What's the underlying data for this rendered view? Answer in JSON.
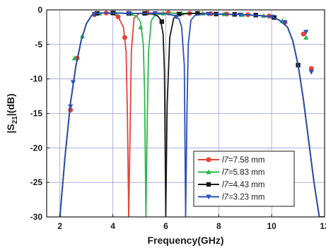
{
  "chart_data": {
    "type": "line",
    "xlabel": "Frequency(GHz)",
    "ylabel_parts": [
      "|S",
      "21",
      "|(dB)"
    ],
    "xlim": [
      1.5,
      12
    ],
    "ylim": [
      -30,
      0
    ],
    "xticks": [
      2,
      4,
      6,
      8,
      10,
      12
    ],
    "xtick_labels": [
      "2",
      "4",
      "6",
      "8",
      "10",
      "12"
    ],
    "yticks": [
      0,
      -5,
      -10,
      -15,
      -20,
      -25,
      -30
    ],
    "ytick_labels": [
      "0",
      "-5",
      "-10",
      "-15",
      "-20",
      "-25",
      "-30"
    ],
    "grid": true,
    "legend_position": "bottom-right",
    "series": [
      {
        "name": "l7=7.58 mm",
        "legend_prefix": "l7",
        "legend_suffix": "=7.58 mm",
        "color": "#e8413a",
        "marker": "circle",
        "x": [
          2.0,
          2.2,
          2.4,
          2.6,
          2.8,
          3.0,
          3.2,
          3.4,
          3.6,
          3.8,
          4.0,
          4.2,
          4.4,
          4.5,
          4.55,
          4.6,
          4.65,
          4.7,
          4.8,
          5.0,
          5.5,
          6.0,
          6.5,
          7.0,
          7.5,
          8.0,
          8.5,
          9.0,
          9.5,
          10.0,
          10.3,
          10.6,
          10.8,
          11.0,
          11.2,
          11.4,
          11.6,
          11.8,
          12.0
        ],
        "y": [
          -30.0,
          -21.0,
          -13.5,
          -8.2,
          -4.5,
          -2.0,
          -0.8,
          -0.5,
          -0.45,
          -0.45,
          -0.6,
          -1.0,
          -2.5,
          -6.0,
          -15.0,
          -30.0,
          -18.0,
          -6.0,
          -1.2,
          -0.5,
          -0.45,
          -0.45,
          -0.5,
          -0.5,
          -0.55,
          -0.6,
          -0.65,
          -0.7,
          -0.8,
          -1.0,
          -1.5,
          -2.5,
          -4.5,
          -8.0,
          -13.0,
          -19.0,
          -25.0,
          -30.0,
          -30.0
        ],
        "marker_x": [
          2.4,
          2.65,
          3.3,
          3.75,
          4.2,
          4.45,
          5.3,
          6.1,
          6.9,
          7.7,
          8.3,
          9.1,
          9.9,
          10.5,
          11.2,
          11.5
        ],
        "marker_y": [
          -14.5,
          -7.0,
          -0.7,
          -0.45,
          -1.0,
          -4.0,
          -0.45,
          -0.45,
          -0.5,
          -0.55,
          -0.6,
          -0.7,
          -0.9,
          -1.8,
          -3.5,
          -8.5
        ]
      },
      {
        "name": "l7=5.83 mm",
        "legend_prefix": "l7",
        "legend_suffix": "=5.83 mm",
        "color": "#2db84a",
        "marker": "triangle-up",
        "x": [
          2.0,
          2.2,
          2.4,
          2.6,
          2.8,
          3.0,
          3.2,
          3.4,
          3.6,
          3.8,
          4.0,
          4.5,
          4.9,
          5.05,
          5.15,
          5.2,
          5.25,
          5.3,
          5.35,
          5.45,
          5.6,
          6.0,
          6.5,
          7.0,
          7.5,
          8.0,
          8.5,
          9.0,
          9.5,
          10.0,
          10.3,
          10.6,
          10.8,
          11.0,
          11.2,
          11.4,
          11.6,
          11.8,
          12.0
        ],
        "y": [
          -30.0,
          -21.0,
          -13.5,
          -8.2,
          -4.5,
          -2.0,
          -0.8,
          -0.5,
          -0.45,
          -0.45,
          -0.45,
          -0.5,
          -0.9,
          -1.8,
          -5.0,
          -12.0,
          -30.0,
          -16.0,
          -6.0,
          -1.6,
          -0.7,
          -0.5,
          -0.5,
          -0.5,
          -0.55,
          -0.6,
          -0.65,
          -0.7,
          -0.8,
          -1.0,
          -1.5,
          -2.5,
          -4.5,
          -8.0,
          -13.0,
          -19.0,
          -25.0,
          -30.0,
          -30.0
        ],
        "marker_x": [
          2.55,
          2.85,
          3.5,
          4.1,
          4.7,
          5.05,
          5.9,
          6.6,
          7.4,
          8.2,
          8.9,
          9.7,
          10.4,
          11.3
        ],
        "marker_y": [
          -7.0,
          -3.8,
          -0.5,
          -0.45,
          -0.55,
          -2.5,
          -0.5,
          -0.5,
          -0.5,
          -0.6,
          -0.7,
          -0.85,
          -1.6,
          -4.0
        ]
      },
      {
        "name": "l7=4.43 mm",
        "legend_prefix": "l7",
        "legend_suffix": "=4.43 mm",
        "color": "#1a1a1a",
        "marker": "square",
        "x": [
          2.0,
          2.2,
          2.4,
          2.6,
          2.8,
          3.0,
          3.2,
          3.4,
          3.6,
          3.8,
          4.0,
          4.5,
          5.0,
          5.5,
          5.7,
          5.8,
          5.9,
          5.95,
          6.0,
          6.05,
          6.15,
          6.3,
          6.6,
          7.0,
          7.5,
          8.0,
          8.5,
          9.0,
          9.5,
          10.0,
          10.3,
          10.6,
          10.8,
          11.0,
          11.2,
          11.4,
          11.6,
          11.8,
          12.0
        ],
        "y": [
          -30.0,
          -21.0,
          -13.5,
          -8.2,
          -4.5,
          -2.0,
          -0.8,
          -0.5,
          -0.45,
          -0.45,
          -0.45,
          -0.5,
          -0.5,
          -0.6,
          -0.9,
          -1.4,
          -3.5,
          -9.0,
          -30.0,
          -14.0,
          -4.0,
          -1.2,
          -0.6,
          -0.5,
          -0.55,
          -0.6,
          -0.65,
          -0.7,
          -0.8,
          -1.0,
          -1.5,
          -2.5,
          -4.5,
          -8.0,
          -13.0,
          -19.0,
          -25.0,
          -30.0,
          -30.0
        ],
        "marker_x": [
          3.4,
          4.0,
          4.6,
          5.2,
          5.85,
          6.5,
          7.2,
          7.9,
          8.6,
          9.4,
          10.1,
          11.0
        ],
        "marker_y": [
          -0.5,
          -0.45,
          -0.5,
          -0.5,
          -1.7,
          -0.6,
          -0.5,
          -0.6,
          -0.65,
          -0.75,
          -1.1,
          -8.0
        ]
      },
      {
        "name": "l7=3.23 mm",
        "legend_prefix": "l7",
        "legend_suffix": "=3.23 mm",
        "color": "#2d4fb8",
        "marker": "triangle-down",
        "x": [
          2.0,
          2.2,
          2.4,
          2.6,
          2.8,
          3.0,
          3.2,
          3.4,
          3.6,
          3.8,
          4.0,
          4.5,
          5.0,
          5.5,
          6.0,
          6.3,
          6.5,
          6.6,
          6.7,
          6.75,
          6.8,
          6.85,
          6.95,
          7.1,
          7.4,
          8.0,
          8.5,
          9.0,
          9.5,
          10.0,
          10.3,
          10.6,
          10.8,
          11.0,
          11.2,
          11.4,
          11.6,
          11.8,
          12.0
        ],
        "y": [
          -30.0,
          -21.0,
          -13.5,
          -8.2,
          -4.5,
          -2.0,
          -0.8,
          -0.5,
          -0.45,
          -0.45,
          -0.45,
          -0.5,
          -0.5,
          -0.5,
          -0.55,
          -0.8,
          -1.3,
          -2.5,
          -8.0,
          -30.0,
          -15.0,
          -5.0,
          -1.5,
          -0.8,
          -0.6,
          -0.6,
          -0.65,
          -0.7,
          -0.8,
          -1.0,
          -1.5,
          -2.5,
          -4.5,
          -8.0,
          -13.0,
          -19.0,
          -25.0,
          -30.0,
          -30.0
        ],
        "marker_x": [
          2.4,
          2.5,
          3.3,
          4.6,
          5.6,
          6.4,
          7.6,
          8.8,
          10.0,
          10.5,
          11.3,
          11.5
        ],
        "marker_y": [
          -14.0,
          -10.5,
          -0.6,
          -0.5,
          -0.5,
          -1.0,
          -0.6,
          -0.7,
          -1.0,
          -1.8,
          -3.2,
          -9.0
        ]
      }
    ]
  }
}
